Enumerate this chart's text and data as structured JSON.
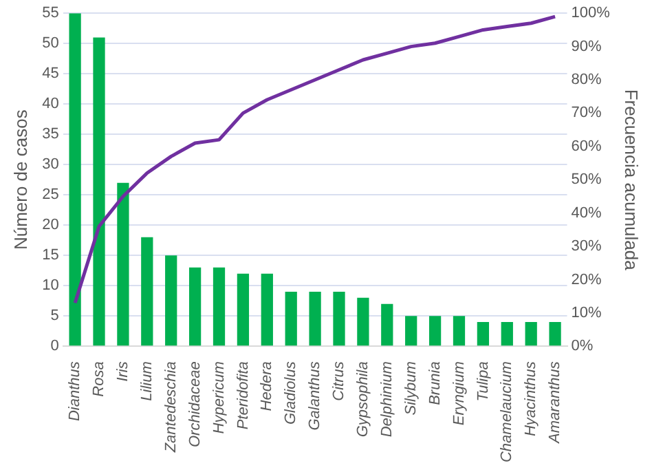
{
  "chart_data": {
    "type": "bar",
    "ylabel": "Número de casos",
    "y2label": "Frecuencia acumulada",
    "categories": [
      "Dianthus",
      "Rosa",
      "Iris",
      "Lilium",
      "Zantedeschia",
      "Orchidaceae",
      "Hypericum",
      "Pteridofita",
      "Hedera",
      "Gladiolus",
      "Galanthus",
      "Citrus",
      "Gypsophila",
      "Delphinium",
      "Silybum",
      "Brunia",
      "Eryngium",
      "Tulipa",
      "Chamelaucium",
      "Hyacinthus",
      "Amaranthus"
    ],
    "series": [
      {
        "color": "#00b050",
        "values": [
          55,
          51,
          27,
          18,
          15,
          13,
          13,
          12,
          12,
          9,
          9,
          9,
          8,
          7,
          5,
          5,
          5,
          4,
          4,
          4,
          4
        ]
      },
      {
        "type": "line",
        "axis": "y2",
        "color": "#7030a0",
        "values": [
          13,
          36,
          45,
          52,
          57,
          61,
          62,
          70,
          74,
          77,
          80,
          83,
          86,
          88,
          90,
          91,
          93,
          95,
          96,
          97,
          99
        ]
      }
    ],
    "ylim": [
      0,
      55
    ],
    "yticks": [
      0,
      5,
      10,
      15,
      20,
      25,
      30,
      35,
      40,
      45,
      50,
      55
    ],
    "y2lim": [
      0,
      100
    ],
    "y2ticks": [
      {
        "value": 0,
        "label": "0%"
      },
      {
        "value": 10,
        "label": "10%"
      },
      {
        "value": 20,
        "label": "20%"
      },
      {
        "value": 30,
        "label": "30%"
      },
      {
        "value": 40,
        "label": "40%"
      },
      {
        "value": 50,
        "label": "50%"
      },
      {
        "value": 60,
        "label": "60%"
      },
      {
        "value": 70,
        "label": "70%"
      },
      {
        "value": 80,
        "label": "80%"
      },
      {
        "value": 90,
        "label": "90%"
      },
      {
        "value": 100,
        "label": "100%"
      }
    ],
    "grid": "y",
    "marker": "none",
    "legend": false
  }
}
